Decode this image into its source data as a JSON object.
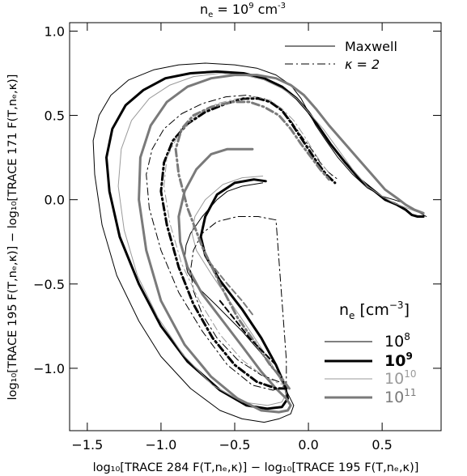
{
  "chart_data": {
    "type": "line",
    "title": "n",
    "title_sub": "e",
    "title_rest": " = 10",
    "title_sup": "9",
    "title_unit": " cm",
    "title_unit_sup": "-3",
    "xlabel": "log₁₀[TRACE 284 F(T,nₑ,κ)] − log₁₀[TRACE 195 F(T,nₑ,κ)]",
    "ylabel": "log₁₀[TRACE 195 F(T,nₑ,κ)] − log₁₀[TRACE 171 F(T,nₑ,κ)]",
    "xlim": [
      -1.62,
      0.9
    ],
    "ylim": [
      -1.37,
      1.05
    ],
    "x_ticks": [
      -1.5,
      -1.0,
      -0.5,
      0.0,
      0.5
    ],
    "x_tick_labels": [
      "−1.5",
      "−1.0",
      "−0.5",
      "0.0",
      "0.5"
    ],
    "y_ticks": [
      1.0,
      0.5,
      0.0,
      -0.5,
      -1.0
    ],
    "y_tick_labels": [
      "1.0",
      "0.5",
      "0.0",
      "−0.5",
      "−1.0"
    ],
    "grid": false,
    "style_legend": {
      "placement": "top-right",
      "entries": [
        {
          "label": "Maxwell",
          "dash": "solid"
        },
        {
          "label": "κ = 2",
          "dash": "dashdot"
        }
      ]
    },
    "density_legend": {
      "placement": "bottom-right",
      "title": "n",
      "title_sub": "e",
      "title_unit": " [cm",
      "title_unit_sup": "−3",
      "title_close": "]",
      "entries": [
        {
          "base": "10",
          "exp": "8",
          "color": "#000000",
          "width": 1,
          "bold": false
        },
        {
          "base": "10",
          "exp": "9",
          "color": "#000000",
          "width": 3,
          "bold": true
        },
        {
          "base": "10",
          "exp": "10",
          "color": "#9a9a9a",
          "width": 1,
          "bold": false
        },
        {
          "base": "10",
          "exp": "11",
          "color": "#7a7a7a",
          "width": 3,
          "bold": false
        }
      ]
    },
    "series": [
      {
        "name": "Maxwell 10^8",
        "color": "#000000",
        "width": 1,
        "dash": "solid",
        "x": [
          -0.31,
          -0.45,
          -0.55,
          -0.62,
          -0.72,
          -0.8,
          -0.83,
          -0.84,
          -0.82,
          -0.75,
          -0.62,
          -0.45,
          -0.3,
          -0.2,
          -0.14,
          -0.1,
          -0.12,
          -0.2,
          -0.3,
          -0.45,
          -0.6,
          -0.8,
          -1.0,
          -1.15,
          -1.3,
          -1.4,
          -1.45,
          -1.46,
          -1.42,
          -1.34,
          -1.22,
          -1.05,
          -0.88,
          -0.7,
          -0.5,
          -0.35,
          -0.22,
          -0.12,
          -0.05,
          0.0,
          0.05,
          0.12,
          0.2,
          0.3,
          0.4,
          0.5,
          0.58,
          0.65,
          0.72,
          0.8
        ],
        "y": [
          0.1,
          0.08,
          0.05,
          0.0,
          -0.1,
          -0.2,
          -0.27,
          -0.35,
          -0.43,
          -0.52,
          -0.63,
          -0.78,
          -0.93,
          -1.05,
          -1.15,
          -1.22,
          -1.27,
          -1.3,
          -1.32,
          -1.3,
          -1.25,
          -1.12,
          -0.93,
          -0.72,
          -0.45,
          -0.15,
          0.15,
          0.35,
          0.5,
          0.62,
          0.71,
          0.77,
          0.8,
          0.81,
          0.8,
          0.78,
          0.74,
          0.68,
          0.6,
          0.52,
          0.44,
          0.35,
          0.25,
          0.15,
          0.07,
          0.02,
          0.0,
          -0.02,
          -0.06,
          -0.1
        ]
      },
      {
        "name": "Maxwell 10^9",
        "color": "#000000",
        "width": 3,
        "dash": "solid",
        "x": [
          -0.29,
          -0.37,
          -0.5,
          -0.62,
          -0.7,
          -0.73,
          -0.7,
          -0.6,
          -0.45,
          -0.32,
          -0.22,
          -0.16,
          -0.14,
          -0.18,
          -0.28,
          -0.42,
          -0.6,
          -0.82,
          -1.0,
          -1.15,
          -1.28,
          -1.35,
          -1.37,
          -1.33,
          -1.24,
          -1.12,
          -0.97,
          -0.8,
          -0.62,
          -0.44,
          -0.3,
          -0.18,
          -0.08,
          0.0,
          0.08,
          0.15,
          0.25,
          0.35,
          0.45,
          0.52,
          0.6,
          0.66,
          0.7,
          0.74,
          0.78
        ],
        "y": [
          0.11,
          0.12,
          0.1,
          0.03,
          -0.1,
          -0.22,
          -0.33,
          -0.48,
          -0.65,
          -0.82,
          -0.98,
          -1.1,
          -1.18,
          -1.23,
          -1.24,
          -1.22,
          -1.13,
          -0.96,
          -0.75,
          -0.5,
          -0.22,
          0.05,
          0.25,
          0.42,
          0.56,
          0.65,
          0.72,
          0.75,
          0.76,
          0.75,
          0.72,
          0.67,
          0.6,
          0.52,
          0.42,
          0.33,
          0.22,
          0.12,
          0.05,
          0.0,
          -0.03,
          -0.06,
          -0.09,
          -0.1,
          -0.1
        ]
      },
      {
        "name": "Maxwell 10^10",
        "color": "#9a9a9a",
        "width": 1,
        "dash": "solid",
        "x": [
          -0.31,
          -0.45,
          -0.58,
          -0.7,
          -0.77,
          -0.79,
          -0.76,
          -0.66,
          -0.52,
          -0.38,
          -0.26,
          -0.18,
          -0.15,
          -0.18,
          -0.28,
          -0.45,
          -0.65,
          -0.85,
          -1.02,
          -1.16,
          -1.25,
          -1.29,
          -1.27,
          -1.2,
          -1.08,
          -0.94,
          -0.78,
          -0.6,
          -0.44,
          -0.3,
          -0.18,
          -0.08,
          0.0,
          0.1,
          0.2,
          0.3,
          0.4,
          0.5,
          0.58,
          0.64,
          0.7,
          0.76
        ],
        "y": [
          0.14,
          0.13,
          0.09,
          0.0,
          -0.1,
          -0.2,
          -0.3,
          -0.44,
          -0.62,
          -0.8,
          -0.96,
          -1.08,
          -1.15,
          -1.2,
          -1.22,
          -1.2,
          -1.1,
          -0.92,
          -0.7,
          -0.45,
          -0.18,
          0.08,
          0.3,
          0.47,
          0.6,
          0.68,
          0.73,
          0.75,
          0.74,
          0.71,
          0.66,
          0.6,
          0.52,
          0.42,
          0.3,
          0.18,
          0.08,
          0.02,
          -0.02,
          -0.04,
          -0.06,
          -0.08
        ]
      },
      {
        "name": "Maxwell 10^11",
        "color": "#7a7a7a",
        "width": 3,
        "dash": "solid",
        "x": [
          -0.38,
          -0.45,
          -0.55,
          -0.66,
          -0.76,
          -0.84,
          -0.88,
          -0.87,
          -0.82,
          -0.72,
          -0.58,
          -0.44,
          -0.32,
          -0.22,
          -0.15,
          -0.12,
          -0.14,
          -0.2,
          -0.32,
          -0.48,
          -0.66,
          -0.84,
          -1.0,
          -1.1,
          -1.15,
          -1.14,
          -1.07,
          -0.96,
          -0.82,
          -0.66,
          -0.5,
          -0.35,
          -0.22,
          -0.12,
          -0.03,
          0.05,
          0.14,
          0.24,
          0.34,
          0.44,
          0.52,
          0.6,
          0.66,
          0.72,
          0.78
        ],
        "y": [
          0.3,
          0.3,
          0.3,
          0.27,
          0.18,
          0.05,
          -0.1,
          -0.25,
          -0.4,
          -0.56,
          -0.72,
          -0.88,
          -1.02,
          -1.12,
          -1.18,
          -1.22,
          -1.25,
          -1.26,
          -1.25,
          -1.18,
          -1.05,
          -0.86,
          -0.6,
          -0.3,
          0.0,
          0.25,
          0.44,
          0.58,
          0.67,
          0.72,
          0.74,
          0.74,
          0.72,
          0.68,
          0.62,
          0.54,
          0.44,
          0.34,
          0.24,
          0.14,
          0.06,
          0.01,
          -0.03,
          -0.06,
          -0.08
        ]
      },
      {
        "name": "kappa 10^8",
        "color": "#000000",
        "width": 1,
        "dash": "dashdot",
        "x": [
          -0.2,
          -0.32,
          -0.48,
          -0.62,
          -0.72,
          -0.78,
          -0.8,
          -0.78,
          -0.72,
          -0.62,
          -0.48,
          -0.34,
          -0.22,
          -0.15,
          -0.15,
          -0.24,
          -0.38,
          -0.55,
          -0.72,
          -0.88,
          -1.0,
          -1.08,
          -1.1,
          -1.06,
          -0.98,
          -0.86,
          -0.72,
          -0.56,
          -0.42,
          -0.3,
          -0.2,
          -0.12,
          -0.05,
          0.02,
          0.08,
          0.14,
          0.2
        ],
        "y": [
          -1.08,
          -1.04,
          -0.95,
          -0.82,
          -0.68,
          -0.54,
          -0.42,
          -0.3,
          -0.2,
          -0.13,
          -0.1,
          -0.1,
          -0.12,
          -0.95,
          -1.1,
          -1.13,
          -1.1,
          -0.98,
          -0.78,
          -0.55,
          -0.3,
          -0.05,
          0.15,
          0.3,
          0.42,
          0.51,
          0.57,
          0.61,
          0.62,
          0.6,
          0.55,
          0.47,
          0.38,
          0.3,
          0.22,
          0.16,
          0.12
        ]
      },
      {
        "name": "kappa 10^9",
        "color": "#000000",
        "width": 3,
        "dash": "dashdot",
        "x": [
          -0.15,
          -0.22,
          -0.35,
          -0.5,
          -0.65,
          -0.78,
          -0.88,
          -0.96,
          -1.0,
          -0.98,
          -0.92,
          -0.82,
          -0.7,
          -0.56,
          -0.44,
          -0.34,
          -0.26,
          -0.18,
          -0.12,
          -0.06,
          0.0,
          0.06,
          0.12,
          0.18
        ],
        "y": [
          -1.12,
          -1.12,
          -1.08,
          -0.98,
          -0.82,
          -0.62,
          -0.4,
          -0.15,
          0.05,
          0.22,
          0.35,
          0.45,
          0.52,
          0.57,
          0.6,
          0.6,
          0.58,
          0.53,
          0.46,
          0.38,
          0.3,
          0.22,
          0.15,
          0.1
        ]
      },
      {
        "name": "kappa 10^10",
        "color": "#9a9a9a",
        "width": 1,
        "dash": "dashdot",
        "x": [
          -0.14,
          -0.2,
          -0.3,
          -0.45,
          -0.6,
          -0.74,
          -0.86,
          -0.94,
          -0.98,
          -0.96,
          -0.88,
          -0.76,
          -0.62,
          -0.48,
          -0.36,
          -0.26,
          -0.18,
          -0.1,
          -0.03,
          0.04,
          0.1,
          0.16
        ],
        "y": [
          -1.1,
          -1.09,
          -1.05,
          -0.95,
          -0.8,
          -0.6,
          -0.38,
          -0.14,
          0.08,
          0.25,
          0.39,
          0.5,
          0.57,
          0.6,
          0.61,
          0.59,
          0.54,
          0.47,
          0.38,
          0.28,
          0.2,
          0.14
        ]
      },
      {
        "name": "kappa 10^11",
        "color": "#7a7a7a",
        "width": 3,
        "dash": "dashdot",
        "x": [
          -0.13,
          -0.18,
          -0.26,
          -0.36,
          -0.48,
          -0.6,
          -0.72,
          -0.82,
          -0.88,
          -0.9,
          -0.86,
          -0.78,
          -0.66,
          -0.52,
          -0.4,
          -0.3,
          -0.2,
          -0.12,
          -0.05,
          0.02,
          0.08,
          0.14
        ],
        "y": [
          -1.12,
          -1.06,
          -0.98,
          -0.85,
          -0.7,
          -0.5,
          -0.28,
          -0.05,
          0.15,
          0.3,
          0.42,
          0.5,
          0.55,
          0.58,
          0.58,
          0.55,
          0.5,
          0.42,
          0.33,
          0.25,
          0.18,
          0.12
        ]
      },
      {
        "name": "kappa 10^11 inner",
        "color": "#7a7a7a",
        "width": 2,
        "dash": "dashed",
        "x": [
          -0.38,
          -0.45,
          -0.55,
          -0.68
        ],
        "y": [
          -0.68,
          -0.6,
          -0.5,
          -0.36
        ]
      },
      {
        "name": "kappa 10^9 inner",
        "color": "#000000",
        "width": 2,
        "dash": "dashed",
        "x": [
          -0.22,
          -0.4,
          -0.6
        ],
        "y": [
          -0.98,
          -0.82,
          -0.6
        ]
      }
    ]
  }
}
